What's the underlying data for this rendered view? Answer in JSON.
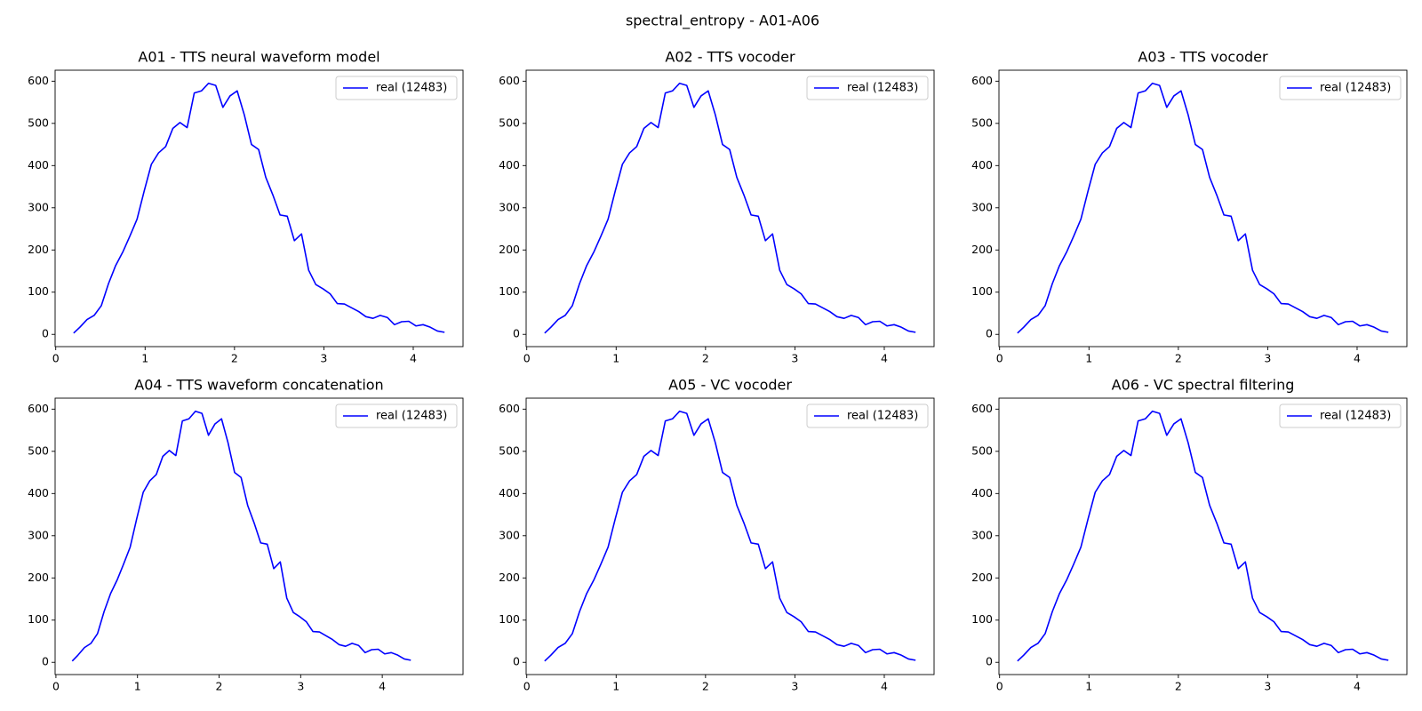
{
  "title": "spectral_entropy - A01-A06",
  "chart_data": [
    {
      "type": "line",
      "title": "A01 - TTS neural waveform model",
      "x": [
        0.2,
        0.27,
        0.35,
        0.43,
        0.51,
        0.59,
        0.67,
        0.75,
        0.83,
        0.91,
        0.99,
        1.07,
        1.15,
        1.23,
        1.31,
        1.39,
        1.47,
        1.55,
        1.63,
        1.71,
        1.79,
        1.87,
        1.95,
        2.03,
        2.11,
        2.19,
        2.27,
        2.35,
        2.43,
        2.51,
        2.59,
        2.67,
        2.75,
        2.83,
        2.91,
        2.99,
        3.07,
        3.15,
        3.23,
        3.31,
        3.39,
        3.47,
        3.55,
        3.63,
        3.71,
        3.79,
        3.87,
        3.95,
        4.03,
        4.11,
        4.19,
        4.27,
        4.35
      ],
      "series": [
        {
          "name": "real (12483)",
          "color": "#0000ff",
          "values": [
            3,
            17,
            35,
            45,
            68,
            120,
            163,
            195,
            233,
            273,
            340,
            403,
            430,
            445,
            488,
            502,
            490,
            572,
            577,
            595,
            590,
            538,
            565,
            577,
            520,
            450,
            438,
            372,
            330,
            283,
            280,
            222,
            238,
            152,
            118,
            108,
            96,
            73,
            72,
            63,
            54,
            42,
            38,
            45,
            40,
            23,
            30,
            31,
            20,
            23,
            17,
            8,
            5
          ]
        }
      ],
      "xlim": [
        -0.007,
        4.557
      ],
      "ylim": [
        -29,
        626
      ],
      "xticks": [
        0,
        1,
        2,
        3,
        4
      ],
      "yticks": [
        0,
        100,
        200,
        300,
        400,
        500,
        600
      ],
      "legend": "upper right"
    },
    {
      "type": "line",
      "title": "A02 - TTS vocoder",
      "x": [
        0.2,
        0.27,
        0.35,
        0.43,
        0.51,
        0.59,
        0.67,
        0.75,
        0.83,
        0.91,
        0.99,
        1.07,
        1.15,
        1.23,
        1.31,
        1.39,
        1.47,
        1.55,
        1.63,
        1.71,
        1.79,
        1.87,
        1.95,
        2.03,
        2.11,
        2.19,
        2.27,
        2.35,
        2.43,
        2.51,
        2.59,
        2.67,
        2.75,
        2.83,
        2.91,
        2.99,
        3.07,
        3.15,
        3.23,
        3.31,
        3.39,
        3.47,
        3.55,
        3.63,
        3.71,
        3.79,
        3.87,
        3.95,
        4.03,
        4.11,
        4.19,
        4.27,
        4.35
      ],
      "series": [
        {
          "name": "real (12483)",
          "color": "#0000ff",
          "values": [
            3,
            17,
            35,
            45,
            68,
            120,
            163,
            195,
            233,
            273,
            340,
            403,
            430,
            445,
            488,
            502,
            490,
            572,
            577,
            595,
            590,
            538,
            565,
            577,
            520,
            450,
            438,
            372,
            330,
            283,
            280,
            222,
            238,
            152,
            118,
            108,
            96,
            73,
            72,
            63,
            54,
            42,
            38,
            45,
            40,
            23,
            30,
            31,
            20,
            23,
            17,
            8,
            5
          ]
        }
      ],
      "xlim": [
        -0.007,
        4.557
      ],
      "ylim": [
        -29,
        626
      ],
      "xticks": [
        0,
        1,
        2,
        3,
        4
      ],
      "yticks": [
        0,
        100,
        200,
        300,
        400,
        500,
        600
      ],
      "legend": "upper right"
    },
    {
      "type": "line",
      "title": "A03 - TTS vocoder",
      "x": [
        0.2,
        0.27,
        0.35,
        0.43,
        0.51,
        0.59,
        0.67,
        0.75,
        0.83,
        0.91,
        0.99,
        1.07,
        1.15,
        1.23,
        1.31,
        1.39,
        1.47,
        1.55,
        1.63,
        1.71,
        1.79,
        1.87,
        1.95,
        2.03,
        2.11,
        2.19,
        2.27,
        2.35,
        2.43,
        2.51,
        2.59,
        2.67,
        2.75,
        2.83,
        2.91,
        2.99,
        3.07,
        3.15,
        3.23,
        3.31,
        3.39,
        3.47,
        3.55,
        3.63,
        3.71,
        3.79,
        3.87,
        3.95,
        4.03,
        4.11,
        4.19,
        4.27,
        4.35
      ],
      "series": [
        {
          "name": "real (12483)",
          "color": "#0000ff",
          "values": [
            3,
            17,
            35,
            45,
            68,
            120,
            163,
            195,
            233,
            273,
            340,
            403,
            430,
            445,
            488,
            502,
            490,
            572,
            577,
            595,
            590,
            538,
            565,
            577,
            520,
            450,
            438,
            372,
            330,
            283,
            280,
            222,
            238,
            152,
            118,
            108,
            96,
            73,
            72,
            63,
            54,
            42,
            38,
            45,
            40,
            23,
            30,
            31,
            20,
            23,
            17,
            8,
            5
          ]
        }
      ],
      "xlim": [
        -0.007,
        4.557
      ],
      "ylim": [
        -29,
        626
      ],
      "xticks": [
        0,
        1,
        2,
        3,
        4
      ],
      "yticks": [
        0,
        100,
        200,
        300,
        400,
        500,
        600
      ],
      "legend": "upper right"
    },
    {
      "type": "line",
      "title": "A04 - TTS waveform concatenation",
      "x": [
        0.2,
        0.27,
        0.35,
        0.43,
        0.51,
        0.59,
        0.67,
        0.75,
        0.83,
        0.91,
        0.99,
        1.07,
        1.15,
        1.23,
        1.31,
        1.39,
        1.47,
        1.55,
        1.63,
        1.71,
        1.79,
        1.87,
        1.95,
        2.03,
        2.11,
        2.19,
        2.27,
        2.35,
        2.43,
        2.51,
        2.59,
        2.67,
        2.75,
        2.83,
        2.91,
        2.99,
        3.07,
        3.15,
        3.23,
        3.31,
        3.39,
        3.47,
        3.55,
        3.63,
        3.71,
        3.79,
        3.87,
        3.95,
        4.03,
        4.11,
        4.19,
        4.27,
        4.35
      ],
      "series": [
        {
          "name": "real (12483)",
          "color": "#0000ff",
          "values": [
            3,
            17,
            35,
            45,
            68,
            120,
            163,
            195,
            233,
            273,
            340,
            403,
            430,
            445,
            488,
            502,
            490,
            572,
            577,
            595,
            590,
            538,
            565,
            577,
            520,
            450,
            438,
            372,
            330,
            283,
            280,
            222,
            238,
            152,
            118,
            108,
            96,
            73,
            72,
            63,
            54,
            42,
            38,
            45,
            40,
            23,
            30,
            31,
            20,
            23,
            17,
            8,
            5
          ]
        }
      ],
      "xlim": [
        -0.01,
        4.99
      ],
      "ylim": [
        -29,
        626
      ],
      "xticks": [
        0,
        1,
        2,
        3,
        4
      ],
      "yticks": [
        0,
        100,
        200,
        300,
        400,
        500,
        600
      ],
      "legend": "upper right"
    },
    {
      "type": "line",
      "title": "A05 - VC vocoder",
      "x": [
        0.2,
        0.27,
        0.35,
        0.43,
        0.51,
        0.59,
        0.67,
        0.75,
        0.83,
        0.91,
        0.99,
        1.07,
        1.15,
        1.23,
        1.31,
        1.39,
        1.47,
        1.55,
        1.63,
        1.71,
        1.79,
        1.87,
        1.95,
        2.03,
        2.11,
        2.19,
        2.27,
        2.35,
        2.43,
        2.51,
        2.59,
        2.67,
        2.75,
        2.83,
        2.91,
        2.99,
        3.07,
        3.15,
        3.23,
        3.31,
        3.39,
        3.47,
        3.55,
        3.63,
        3.71,
        3.79,
        3.87,
        3.95,
        4.03,
        4.11,
        4.19,
        4.27,
        4.35
      ],
      "series": [
        {
          "name": "real (12483)",
          "color": "#0000ff",
          "values": [
            3,
            17,
            35,
            45,
            68,
            120,
            163,
            195,
            233,
            273,
            340,
            403,
            430,
            445,
            488,
            502,
            490,
            572,
            577,
            595,
            590,
            538,
            565,
            577,
            520,
            450,
            438,
            372,
            330,
            283,
            280,
            222,
            238,
            152,
            118,
            108,
            96,
            73,
            72,
            63,
            54,
            42,
            38,
            45,
            40,
            23,
            30,
            31,
            20,
            23,
            17,
            8,
            5
          ]
        }
      ],
      "xlim": [
        -0.007,
        4.557
      ],
      "ylim": [
        -29,
        626
      ],
      "xticks": [
        0,
        1,
        2,
        3,
        4
      ],
      "yticks": [
        0,
        100,
        200,
        300,
        400,
        500,
        600
      ],
      "legend": "upper right"
    },
    {
      "type": "line",
      "title": "A06 - VC spectral filtering",
      "x": [
        0.2,
        0.27,
        0.35,
        0.43,
        0.51,
        0.59,
        0.67,
        0.75,
        0.83,
        0.91,
        0.99,
        1.07,
        1.15,
        1.23,
        1.31,
        1.39,
        1.47,
        1.55,
        1.63,
        1.71,
        1.79,
        1.87,
        1.95,
        2.03,
        2.11,
        2.19,
        2.27,
        2.35,
        2.43,
        2.51,
        2.59,
        2.67,
        2.75,
        2.83,
        2.91,
        2.99,
        3.07,
        3.15,
        3.23,
        3.31,
        3.39,
        3.47,
        3.55,
        3.63,
        3.71,
        3.79,
        3.87,
        3.95,
        4.03,
        4.11,
        4.19,
        4.27,
        4.35
      ],
      "series": [
        {
          "name": "real (12483)",
          "color": "#0000ff",
          "values": [
            3,
            17,
            35,
            45,
            68,
            120,
            163,
            195,
            233,
            273,
            340,
            403,
            430,
            445,
            488,
            502,
            490,
            572,
            577,
            595,
            590,
            538,
            565,
            577,
            520,
            450,
            438,
            372,
            330,
            283,
            280,
            222,
            238,
            152,
            118,
            108,
            96,
            73,
            72,
            63,
            54,
            42,
            38,
            45,
            40,
            23,
            30,
            31,
            20,
            23,
            17,
            8,
            5
          ]
        }
      ],
      "xlim": [
        -0.007,
        4.557
      ],
      "ylim": [
        -29,
        626
      ],
      "xticks": [
        0,
        1,
        2,
        3,
        4
      ],
      "yticks": [
        0,
        100,
        200,
        300,
        400,
        500,
        600
      ],
      "legend": "upper right"
    }
  ]
}
